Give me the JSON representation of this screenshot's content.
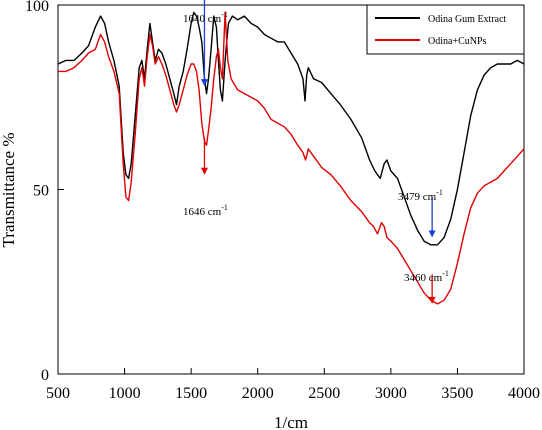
{
  "chart_data": {
    "type": "line",
    "title": "",
    "xlabel": "1/cm",
    "ylabel": "Transmittance %",
    "xlim": [
      500,
      4000
    ],
    "ylim": [
      0,
      100
    ],
    "xticks": [
      500,
      1000,
      1500,
      2000,
      2500,
      3000,
      3500,
      4000
    ],
    "yticks": [
      0,
      50,
      100
    ],
    "grid": false,
    "legend": "top-right",
    "colors": {
      "black": "#000000",
      "red": "#e00000",
      "blue": "#1a3fd6"
    },
    "series": [
      {
        "name": "Odina Gum Extract",
        "color": "#000000",
        "points": [
          [
            500,
            84
          ],
          [
            560,
            85
          ],
          [
            620,
            85
          ],
          [
            680,
            87
          ],
          [
            730,
            89
          ],
          [
            780,
            94
          ],
          [
            820,
            97
          ],
          [
            850,
            95
          ],
          [
            880,
            90
          ],
          [
            920,
            85
          ],
          [
            960,
            78
          ],
          [
            990,
            60
          ],
          [
            1010,
            54
          ],
          [
            1030,
            53
          ],
          [
            1050,
            57
          ],
          [
            1080,
            70
          ],
          [
            1110,
            83
          ],
          [
            1130,
            85
          ],
          [
            1150,
            80
          ],
          [
            1170,
            88
          ],
          [
            1190,
            95
          ],
          [
            1210,
            90
          ],
          [
            1230,
            85
          ],
          [
            1255,
            88
          ],
          [
            1280,
            87
          ],
          [
            1310,
            84
          ],
          [
            1340,
            80
          ],
          [
            1370,
            76
          ],
          [
            1390,
            73
          ],
          [
            1410,
            78
          ],
          [
            1440,
            82
          ],
          [
            1470,
            88
          ],
          [
            1500,
            95
          ],
          [
            1520,
            98
          ],
          [
            1540,
            97
          ],
          [
            1560,
            94
          ],
          [
            1580,
            90
          ],
          [
            1600,
            80
          ],
          [
            1615,
            76
          ],
          [
            1630,
            80
          ],
          [
            1650,
            88
          ],
          [
            1670,
            97
          ],
          [
            1690,
            94
          ],
          [
            1705,
            85
          ],
          [
            1720,
            77
          ],
          [
            1735,
            74
          ],
          [
            1755,
            85
          ],
          [
            1780,
            95
          ],
          [
            1810,
            97
          ],
          [
            1850,
            96
          ],
          [
            1900,
            97
          ],
          [
            1950,
            95
          ],
          [
            2000,
            94
          ],
          [
            2050,
            92
          ],
          [
            2100,
            91
          ],
          [
            2150,
            90
          ],
          [
            2200,
            90
          ],
          [
            2250,
            87
          ],
          [
            2300,
            84
          ],
          [
            2340,
            80
          ],
          [
            2355,
            74
          ],
          [
            2368,
            81
          ],
          [
            2380,
            83
          ],
          [
            2420,
            80
          ],
          [
            2480,
            79
          ],
          [
            2550,
            76
          ],
          [
            2620,
            73
          ],
          [
            2700,
            69
          ],
          [
            2780,
            64
          ],
          [
            2840,
            58
          ],
          [
            2880,
            55
          ],
          [
            2920,
            53
          ],
          [
            2950,
            57
          ],
          [
            2970,
            58
          ],
          [
            3000,
            55
          ],
          [
            3050,
            53
          ],
          [
            3100,
            48
          ],
          [
            3150,
            43
          ],
          [
            3200,
            39
          ],
          [
            3250,
            36
          ],
          [
            3300,
            35
          ],
          [
            3350,
            35
          ],
          [
            3400,
            37
          ],
          [
            3450,
            42
          ],
          [
            3500,
            50
          ],
          [
            3550,
            60
          ],
          [
            3600,
            70
          ],
          [
            3650,
            77
          ],
          [
            3700,
            81
          ],
          [
            3750,
            83
          ],
          [
            3800,
            84
          ],
          [
            3850,
            84
          ],
          [
            3900,
            84
          ],
          [
            3950,
            85
          ],
          [
            4000,
            84
          ]
        ]
      },
      {
        "name": "Odina+CuNPs",
        "color": "#e00000",
        "points": [
          [
            500,
            82
          ],
          [
            560,
            82
          ],
          [
            620,
            83
          ],
          [
            680,
            85
          ],
          [
            730,
            87
          ],
          [
            780,
            88
          ],
          [
            820,
            92
          ],
          [
            850,
            90
          ],
          [
            880,
            86
          ],
          [
            920,
            82
          ],
          [
            960,
            76
          ],
          [
            990,
            57
          ],
          [
            1010,
            48
          ],
          [
            1030,
            47
          ],
          [
            1050,
            52
          ],
          [
            1080,
            65
          ],
          [
            1110,
            80
          ],
          [
            1130,
            83
          ],
          [
            1150,
            78
          ],
          [
            1170,
            86
          ],
          [
            1190,
            92
          ],
          [
            1210,
            89
          ],
          [
            1230,
            84
          ],
          [
            1255,
            86
          ],
          [
            1280,
            84
          ],
          [
            1310,
            81
          ],
          [
            1340,
            77
          ],
          [
            1370,
            73
          ],
          [
            1390,
            71
          ],
          [
            1410,
            73
          ],
          [
            1440,
            77
          ],
          [
            1470,
            81
          ],
          [
            1500,
            84
          ],
          [
            1520,
            84
          ],
          [
            1540,
            82
          ],
          [
            1560,
            77
          ],
          [
            1580,
            68
          ],
          [
            1600,
            63
          ],
          [
            1615,
            62
          ],
          [
            1630,
            66
          ],
          [
            1650,
            72
          ],
          [
            1670,
            80
          ],
          [
            1690,
            86
          ],
          [
            1705,
            88
          ],
          [
            1720,
            83
          ],
          [
            1735,
            80
          ],
          [
            1755,
            98
          ],
          [
            1775,
            85
          ],
          [
            1800,
            80
          ],
          [
            1850,
            77
          ],
          [
            1900,
            76
          ],
          [
            1950,
            75
          ],
          [
            2000,
            74
          ],
          [
            2050,
            72
          ],
          [
            2100,
            69
          ],
          [
            2150,
            68
          ],
          [
            2200,
            67
          ],
          [
            2250,
            65
          ],
          [
            2300,
            62
          ],
          [
            2340,
            60
          ],
          [
            2360,
            58
          ],
          [
            2380,
            61
          ],
          [
            2420,
            59
          ],
          [
            2480,
            56
          ],
          [
            2550,
            54
          ],
          [
            2620,
            51
          ],
          [
            2700,
            47
          ],
          [
            2780,
            44
          ],
          [
            2840,
            41
          ],
          [
            2870,
            40
          ],
          [
            2900,
            38
          ],
          [
            2930,
            41
          ],
          [
            2950,
            40
          ],
          [
            2970,
            37
          ],
          [
            3000,
            36
          ],
          [
            3050,
            34
          ],
          [
            3100,
            31
          ],
          [
            3150,
            28
          ],
          [
            3200,
            25
          ],
          [
            3250,
            22
          ],
          [
            3300,
            20
          ],
          [
            3350,
            19
          ],
          [
            3400,
            20
          ],
          [
            3450,
            23
          ],
          [
            3500,
            30
          ],
          [
            3550,
            38
          ],
          [
            3600,
            45
          ],
          [
            3650,
            49
          ],
          [
            3700,
            51
          ],
          [
            3750,
            52
          ],
          [
            3800,
            53
          ],
          [
            3850,
            55
          ],
          [
            3900,
            57
          ],
          [
            3950,
            59
          ],
          [
            4000,
            61
          ]
        ]
      }
    ],
    "annotations": [
      {
        "label": "1640 cm",
        "sup": "-1",
        "color": "#1a3fd6",
        "x": 1600,
        "y_from": 106,
        "y_to": 78
      },
      {
        "label": "1646 cm",
        "sup": "-1",
        "color": "#e00000",
        "x": 1600,
        "y_from": 64,
        "y_to": 54
      },
      {
        "label": "3479 cm",
        "sup": "-1",
        "color": "#1a3fd6",
        "x": 3310,
        "y_from": 48,
        "y_to": 37
      },
      {
        "label": "3460 cm",
        "sup": "-1",
        "color": "#e00000",
        "x": 3310,
        "y_from": 27,
        "y_to": 19
      }
    ]
  }
}
